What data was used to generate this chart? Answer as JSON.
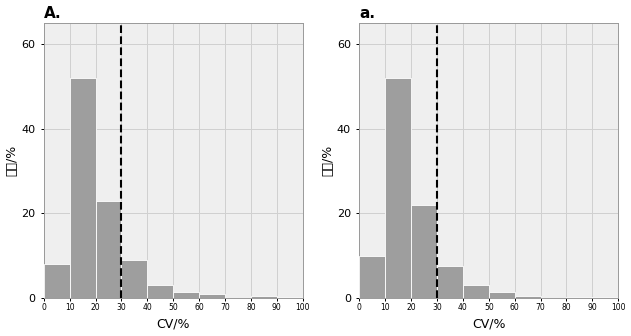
{
  "chart_A": {
    "title": "A.",
    "title_weight": "bold",
    "bar_values": [
      8,
      52,
      23,
      9,
      3,
      1.5,
      1,
      0,
      0.5,
      0.3
    ],
    "bar_color": "#9e9e9e",
    "bar_edge_color": "#ffffff",
    "dashed_line_x": 30,
    "xlabel": "CV/%",
    "ylabel": "频率/%",
    "ylim": [
      0,
      65
    ],
    "yticks": [
      0,
      20,
      40,
      60
    ],
    "xtick_positions": [
      0,
      10,
      20,
      30,
      40,
      50,
      60,
      70,
      80,
      90,
      100
    ],
    "xtick_labels": [
      "0",
      "10",
      "20",
      "30",
      "40",
      "50",
      "60",
      "70",
      "80",
      "90",
      "100"
    ],
    "bin_edges": [
      0,
      10,
      20,
      30,
      40,
      50,
      60,
      70,
      80,
      90,
      100
    ],
    "grid_color": "#d0d0d0",
    "background_color": "#efefef"
  },
  "chart_a": {
    "title": "a.",
    "title_weight": "bold",
    "bar_values": [
      10,
      52,
      22,
      7.5,
      3,
      1.5,
      0.5,
      0,
      0.3,
      0.2
    ],
    "bar_color": "#9e9e9e",
    "bar_edge_color": "#ffffff",
    "dashed_line_x": 30,
    "xlabel": "CV/%",
    "ylabel": "频率/%",
    "ylim": [
      0,
      65
    ],
    "yticks": [
      0,
      20,
      40,
      60
    ],
    "xtick_positions": [
      0,
      10,
      20,
      30,
      40,
      50,
      60,
      70,
      80,
      90,
      100
    ],
    "xtick_labels": [
      "0",
      "10",
      "20",
      "30",
      "40",
      "50",
      "60",
      "70",
      "80",
      "90",
      "100"
    ],
    "bin_edges": [
      0,
      10,
      20,
      30,
      40,
      50,
      60,
      70,
      80,
      90,
      100
    ],
    "grid_color": "#d0d0d0",
    "background_color": "#efefef"
  }
}
